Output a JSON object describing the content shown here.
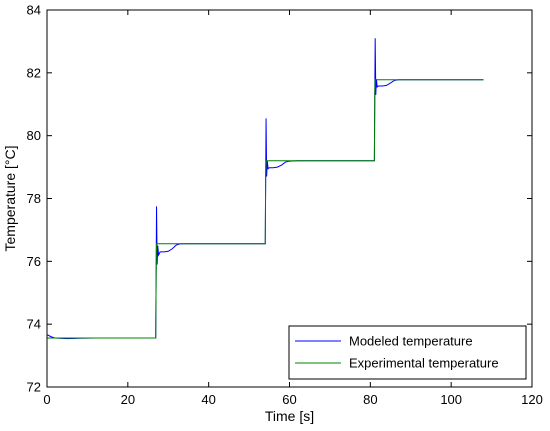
{
  "chart_data": {
    "type": "line",
    "title": "",
    "xlabel": "Time [s]",
    "ylabel": "Temperature [°C]",
    "xlim": [
      0,
      120
    ],
    "ylim": [
      72,
      84
    ],
    "xticks": [
      0,
      20,
      40,
      60,
      80,
      100,
      120
    ],
    "yticks": [
      72,
      74,
      76,
      78,
      80,
      82,
      84
    ],
    "grid": false,
    "legend_position": "bottom-right",
    "series": [
      {
        "name": "Modeled temperature",
        "color": "#0000ff",
        "x": [
          0,
          0.3,
          1,
          2,
          3,
          5,
          8,
          12,
          20,
          26.9,
          27.0,
          27.1,
          27.25,
          27.4,
          27.6,
          28,
          29,
          30,
          31,
          32,
          33,
          35,
          40,
          54.0,
          54.1,
          54.2,
          54.35,
          54.5,
          54.7,
          55,
          56,
          57,
          58,
          59,
          60,
          62,
          70,
          81.0,
          81.1,
          81.2,
          81.35,
          81.5,
          81.7,
          82,
          83,
          84,
          85,
          86,
          87,
          88,
          95,
          108
        ],
        "y": [
          73.65,
          73.65,
          73.6,
          73.56,
          73.55,
          73.54,
          73.55,
          73.56,
          73.56,
          73.56,
          75.6,
          77.75,
          75.9,
          76.5,
          76.2,
          76.3,
          76.3,
          76.32,
          76.4,
          76.52,
          76.56,
          76.56,
          76.56,
          76.56,
          78.5,
          80.55,
          78.7,
          79.2,
          78.95,
          78.98,
          78.98,
          79.0,
          79.06,
          79.16,
          79.19,
          79.2,
          79.2,
          79.2,
          81.2,
          83.1,
          81.3,
          81.8,
          81.55,
          81.58,
          81.58,
          81.6,
          81.68,
          81.76,
          81.78,
          81.78,
          81.78,
          81.78
        ]
      },
      {
        "name": "Experimental temperature",
        "color": "#008000",
        "x": [
          0,
          26.9,
          27.0,
          27.1,
          27.3,
          54.0,
          54.1,
          54.2,
          54.4,
          81.0,
          81.1,
          81.2,
          81.4,
          108
        ],
        "y": [
          73.56,
          73.56,
          75.5,
          76.56,
          76.56,
          76.56,
          78.7,
          79.2,
          79.2,
          79.2,
          81.3,
          81.78,
          81.78,
          81.78
        ]
      }
    ]
  }
}
